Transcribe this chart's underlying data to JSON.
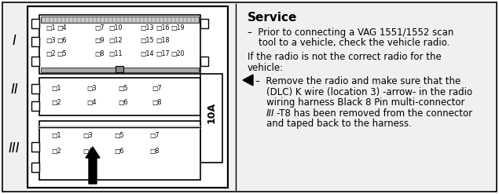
{
  "bg_color": "#ffffff",
  "service_title": "Service",
  "bullet1_line1": "–  Prior to connecting a VAG 1551/1552 scan",
  "bullet1_line2": "    tool to a vehicle, check the vehicle radio.",
  "if_line1": "If the radio is not the correct radio for the",
  "if_line2": "vehicle:",
  "bullet2_dash": "–  Remove the radio and make sure that the",
  "bullet2_line2": "(DLC) K wire (location 3) -arrow- in the radio",
  "bullet2_line3": "wiring harness Black 8 Pin multi-connector",
  "bullet2_line4_italic": "III",
  "bullet2_line4_rest": "-T8 has been removed from the connector",
  "bullet2_line5": "and taped back to the harness.",
  "roman_I": "I",
  "roman_II": "II",
  "roman_III": "III",
  "label_10A": "10A"
}
